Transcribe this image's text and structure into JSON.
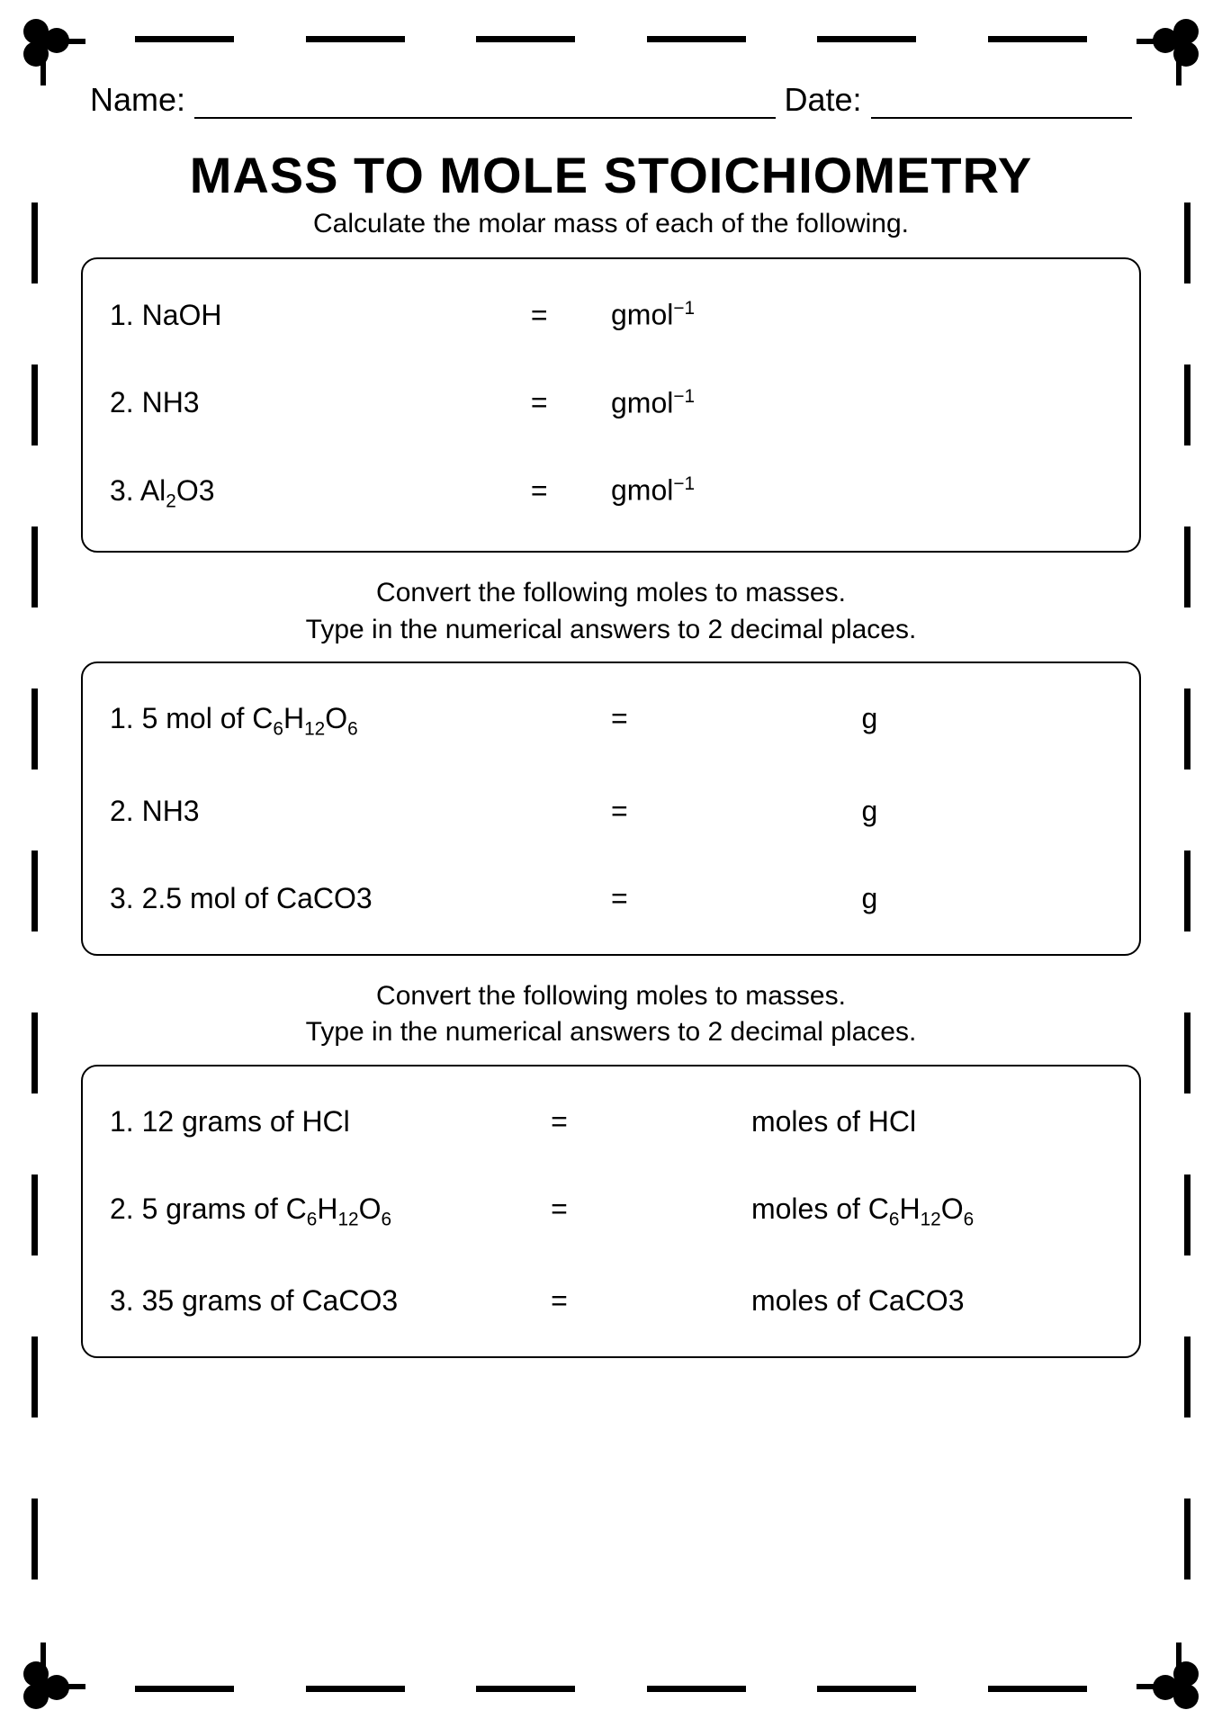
{
  "header": {
    "name_label": "Name:",
    "date_label": "Date:"
  },
  "title": "MASS TO MOLE STOICHIOMETRY",
  "section1": {
    "instruction": "Calculate the molar mass of each of the following.",
    "rows": [
      {
        "num": "1.",
        "formula_html": "NaOH",
        "eq": "=",
        "unit_html": "gmol<sup>−1</sup>"
      },
      {
        "num": "2.",
        "formula_html": "NH3",
        "eq": "=",
        "unit_html": "gmol<sup>−1</sup>"
      },
      {
        "num": "3.",
        "formula_html": "Al<sub>2</sub>O3",
        "eq": "=",
        "unit_html": "gmol<sup>−1</sup>"
      }
    ]
  },
  "section2": {
    "instruction_line1": "Convert the following moles to masses.",
    "instruction_line2": "Type in the numerical answers to 2 decimal places.",
    "rows": [
      {
        "num": "1.",
        "formula_html": "5 mol of C<sub>6</sub>H<sub>12</sub>O<sub>6</sub>",
        "eq": "=",
        "unit_html": "g"
      },
      {
        "num": "2.",
        "formula_html": "NH3",
        "eq": "=",
        "unit_html": "g"
      },
      {
        "num": "3.",
        "formula_html": "2.5 mol of CaCO3",
        "eq": "=",
        "unit_html": "g"
      }
    ]
  },
  "section3": {
    "instruction_line1": "Convert the following moles to masses.",
    "instruction_line2": "Type in the numerical answers to 2 decimal places.",
    "rows": [
      {
        "num": "1.",
        "formula_html": "12 grams of HCl",
        "eq": "=",
        "unit_html": "moles of HCl"
      },
      {
        "num": "2.",
        "formula_html": "5 grams of C<sub>6</sub>H<sub>12</sub>O<sub>6</sub>",
        "eq": "=",
        "unit_html": "moles of C<sub>6</sub>H<sub>12</sub>O<sub>6</sub>"
      },
      {
        "num": "3.",
        "formula_html": "35 grams of CaCO3",
        "eq": "=",
        "unit_html": "moles of CaCO3"
      }
    ]
  },
  "style": {
    "border_color": "#000000",
    "background_color": "#ffffff",
    "text_color": "#000000",
    "title_fontsize": 56,
    "body_fontsize": 32,
    "instruction_fontsize": 30,
    "box_border_radius": 18,
    "dash_count_horizontal": 6,
    "dash_count_vertical": 9
  }
}
